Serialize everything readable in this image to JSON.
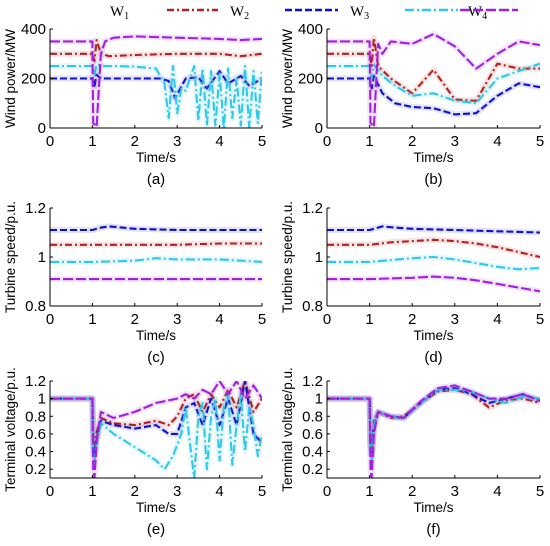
{
  "legend": {
    "entries": [
      {
        "name": "W1",
        "base": "W",
        "sub": "1",
        "color": "#b22222"
      },
      {
        "name": "W2",
        "base": "W",
        "sub": "2",
        "color": "#1010c8"
      },
      {
        "name": "W3",
        "base": "W",
        "sub": "3",
        "color": "#30c8e8"
      },
      {
        "name": "W4",
        "base": "W",
        "sub": "4",
        "color": "#a020e0"
      }
    ]
  },
  "chart_data": [
    {
      "id": "a",
      "type": "line",
      "caption": "(a)",
      "xlabel": "Time/s",
      "ylabel": "Wind power/MW",
      "xlim": [
        0,
        5
      ],
      "ylim": [
        0,
        400
      ],
      "xticks": [
        0,
        1,
        2,
        3,
        4,
        5
      ],
      "xtick_labels": [
        "0",
        "1",
        "2",
        "3",
        "4",
        "5"
      ],
      "yticks": [
        0,
        200,
        400
      ],
      "ytick_labels": [
        "0",
        "200",
        "400"
      ],
      "series": [
        {
          "name": "W1",
          "color": "#b22222",
          "dash": "7,3,2,3",
          "x": [
            0,
            1.0,
            1.05,
            1.1,
            1.2,
            1.4,
            2.0,
            3.0,
            4.0,
            4.5,
            5.0
          ],
          "y": [
            300,
            300,
            270,
            355,
            300,
            290,
            295,
            300,
            300,
            290,
            300
          ]
        },
        {
          "name": "W2",
          "color": "#1010c8",
          "dash": "7,3",
          "x": [
            0,
            1.0,
            1.05,
            1.1,
            1.2,
            1.5,
            2.0,
            2.6,
            2.8,
            2.95,
            3.2,
            3.5,
            3.7,
            4.0,
            4.2,
            4.5,
            4.7,
            5.0
          ],
          "y": [
            200,
            200,
            170,
            215,
            200,
            200,
            200,
            200,
            190,
            120,
            200,
            205,
            160,
            230,
            180,
            210,
            170,
            200
          ]
        },
        {
          "name": "W3",
          "color": "#30c8e8",
          "dash": "9,3,2,3",
          "x": [
            0,
            1.0,
            1.05,
            1.1,
            1.3,
            1.6,
            2.0,
            2.5,
            2.7,
            2.8,
            2.9,
            3.0,
            3.1,
            3.2,
            3.4,
            3.5,
            3.6,
            3.7,
            3.8,
            3.9,
            4.0,
            4.1,
            4.2,
            4.3,
            4.4,
            4.5,
            4.6,
            4.7,
            4.8,
            4.9,
            5.0
          ],
          "y": [
            250,
            250,
            215,
            255,
            250,
            250,
            248,
            240,
            180,
            40,
            250,
            60,
            160,
            150,
            250,
            30,
            240,
            10,
            230,
            10,
            220,
            0,
            240,
            40,
            200,
            10,
            250,
            0,
            230,
            20,
            230
          ]
        },
        {
          "name": "W4",
          "color": "#a020e0",
          "dash": "10,3",
          "x": [
            0,
            1.0,
            1.02,
            1.1,
            1.2,
            1.3,
            1.5,
            2.0,
            3.0,
            4.0,
            4.5,
            5.0
          ],
          "y": [
            350,
            350,
            20,
            5,
            300,
            350,
            365,
            370,
            365,
            360,
            355,
            360
          ]
        }
      ]
    },
    {
      "id": "b",
      "type": "line",
      "caption": "(b)",
      "xlabel": "Time/s",
      "ylabel": "Wind power/MW",
      "xlim": [
        0,
        5
      ],
      "ylim": [
        0,
        400
      ],
      "xticks": [
        0,
        1,
        2,
        3,
        4,
        5
      ],
      "xtick_labels": [
        "0",
        "1",
        "2",
        "3",
        "4",
        "5"
      ],
      "yticks": [
        0,
        200,
        400
      ],
      "ytick_labels": [
        "0",
        "200",
        "400"
      ],
      "series": [
        {
          "name": "W1",
          "color": "#b22222",
          "dash": "7,3,2,3",
          "x": [
            0,
            1.0,
            1.05,
            1.1,
            1.2,
            1.5,
            2.0,
            2.5,
            3.0,
            3.5,
            4.0,
            4.5,
            5.0
          ],
          "y": [
            300,
            300,
            250,
            365,
            250,
            200,
            140,
            235,
            115,
            110,
            260,
            240,
            240
          ]
        },
        {
          "name": "W2",
          "color": "#1010c8",
          "dash": "7,3",
          "x": [
            0,
            1.0,
            1.05,
            1.1,
            1.3,
            1.6,
            2.0,
            2.5,
            3.0,
            3.5,
            4.0,
            4.5,
            5.0
          ],
          "y": [
            200,
            200,
            160,
            210,
            140,
            100,
            85,
            80,
            55,
            60,
            130,
            180,
            165
          ]
        },
        {
          "name": "W3",
          "color": "#30c8e8",
          "dash": "9,3,2,3",
          "x": [
            0,
            1.0,
            1.05,
            1.1,
            1.3,
            1.6,
            2.0,
            2.5,
            3.0,
            3.5,
            4.0,
            4.5,
            5.0
          ],
          "y": [
            250,
            250,
            200,
            255,
            210,
            170,
            130,
            140,
            110,
            100,
            200,
            230,
            260
          ]
        },
        {
          "name": "W4",
          "color": "#a020e0",
          "dash": "10,3",
          "x": [
            0,
            1.0,
            1.02,
            1.1,
            1.2,
            1.3,
            1.5,
            2.0,
            2.5,
            3.0,
            3.5,
            4.0,
            4.5,
            5.0
          ],
          "y": [
            350,
            350,
            20,
            5,
            340,
            300,
            350,
            340,
            380,
            330,
            240,
            300,
            350,
            335
          ]
        }
      ]
    },
    {
      "id": "c",
      "type": "line",
      "caption": "(c)",
      "xlabel": "Time/s",
      "ylabel": "Turbine speed/p.u.",
      "xlim": [
        0,
        5
      ],
      "ylim": [
        0.8,
        1.2
      ],
      "xticks": [
        0,
        1,
        2,
        3,
        4,
        5
      ],
      "xtick_labels": [
        "0",
        "1",
        "2",
        "3",
        "4",
        "5"
      ],
      "yticks": [
        0.8,
        1.0,
        1.2
      ],
      "ytick_labels": [
        "0.8",
        "1",
        "1.2"
      ],
      "series": [
        {
          "name": "W1",
          "color": "#b22222",
          "dash": "7,3,2,3",
          "x": [
            0,
            1.0,
            2.0,
            3.0,
            4.0,
            5.0
          ],
          "y": [
            1.05,
            1.05,
            1.05,
            1.05,
            1.055,
            1.055
          ]
        },
        {
          "name": "W2",
          "color": "#1010c8",
          "dash": "7,3",
          "x": [
            0,
            1.0,
            1.2,
            1.4,
            1.7,
            2.0,
            3.0,
            4.0,
            5.0
          ],
          "y": [
            1.11,
            1.11,
            1.12,
            1.125,
            1.12,
            1.115,
            1.11,
            1.11,
            1.11
          ]
        },
        {
          "name": "W3",
          "color": "#30c8e8",
          "dash": "9,3,2,3",
          "x": [
            0,
            1.0,
            2.0,
            2.5,
            3.0,
            4.0,
            5.0
          ],
          "y": [
            0.98,
            0.98,
            0.985,
            0.995,
            0.99,
            0.99,
            0.98
          ]
        },
        {
          "name": "W4",
          "color": "#a020e0",
          "dash": "10,3",
          "x": [
            0,
            1.0,
            2.0,
            3.0,
            4.0,
            5.0
          ],
          "y": [
            0.91,
            0.91,
            0.91,
            0.91,
            0.91,
            0.91
          ]
        }
      ]
    },
    {
      "id": "d",
      "type": "line",
      "caption": "(d)",
      "xlabel": "Time/s",
      "ylabel": "Turbine speed/p.u.",
      "xlim": [
        0,
        5
      ],
      "ylim": [
        0.8,
        1.2
      ],
      "xticks": [
        0,
        1,
        2,
        3,
        4,
        5
      ],
      "xtick_labels": [
        "0",
        "1",
        "2",
        "3",
        "4",
        "5"
      ],
      "yticks": [
        0.8,
        1.0,
        1.2
      ],
      "ytick_labels": [
        "0.8",
        "1",
        "1.2"
      ],
      "series": [
        {
          "name": "W1",
          "color": "#b22222",
          "dash": "7,3,2,3",
          "x": [
            0,
            1.0,
            1.5,
            2.0,
            2.5,
            3.0,
            3.5,
            4.0,
            4.5,
            5.0
          ],
          "y": [
            1.05,
            1.05,
            1.06,
            1.065,
            1.07,
            1.065,
            1.055,
            1.04,
            1.02,
            1.0
          ]
        },
        {
          "name": "W2",
          "color": "#1010c8",
          "dash": "7,3",
          "x": [
            0,
            1.0,
            1.3,
            1.6,
            2.0,
            3.0,
            4.0,
            5.0
          ],
          "y": [
            1.11,
            1.11,
            1.125,
            1.12,
            1.115,
            1.11,
            1.105,
            1.1
          ]
        },
        {
          "name": "W3",
          "color": "#30c8e8",
          "dash": "9,3,2,3",
          "x": [
            0,
            1.0,
            2.0,
            2.5,
            3.0,
            3.5,
            4.0,
            4.5,
            5.0
          ],
          "y": [
            0.98,
            0.98,
            0.995,
            1.0,
            0.99,
            0.975,
            0.96,
            0.95,
            0.955
          ]
        },
        {
          "name": "W4",
          "color": "#a020e0",
          "dash": "10,3",
          "x": [
            0,
            1.0,
            2.0,
            2.5,
            3.0,
            3.5,
            4.0,
            4.5,
            5.0
          ],
          "y": [
            0.91,
            0.91,
            0.915,
            0.92,
            0.915,
            0.905,
            0.89,
            0.875,
            0.86
          ]
        }
      ]
    },
    {
      "id": "e",
      "type": "line",
      "caption": "(e)",
      "xlabel": "Time/s",
      "ylabel": "Terminal voltage/p.u.",
      "xlim": [
        0,
        5
      ],
      "ylim": [
        0.1,
        1.2
      ],
      "xticks": [
        0,
        1,
        2,
        3,
        4,
        5
      ],
      "xtick_labels": [
        "0",
        "1",
        "2",
        "3",
        "4",
        "5"
      ],
      "yticks": [
        0.2,
        0.4,
        0.6,
        0.8,
        1.0,
        1.2
      ],
      "ytick_labels": [
        "0.2",
        "0.4",
        "0.6",
        "0.8",
        "1",
        "1.2"
      ],
      "series": [
        {
          "name": "W1",
          "color": "#b22222",
          "dash": "7,3,2,3",
          "x": [
            0,
            1.0,
            1.02,
            1.05,
            1.1,
            1.2,
            1.5,
            2.0,
            2.5,
            2.8,
            3.0,
            3.2,
            3.4,
            3.6,
            3.8,
            4.0,
            4.2,
            4.4,
            4.6,
            4.8,
            5.0
          ],
          "y": [
            1.0,
            1.0,
            0.6,
            0.45,
            0.62,
            0.78,
            0.72,
            0.7,
            0.75,
            0.7,
            0.8,
            1.0,
            1.05,
            0.85,
            1.05,
            0.9,
            1.1,
            0.9,
            1.2,
            0.85,
            1.0
          ]
        },
        {
          "name": "W2",
          "color": "#1010c8",
          "dash": "7,3",
          "x": [
            0,
            1.0,
            1.02,
            1.05,
            1.1,
            1.2,
            1.5,
            2.0,
            2.5,
            2.8,
            3.0,
            3.2,
            3.4,
            3.6,
            3.8,
            4.0,
            4.2,
            4.4,
            4.6,
            4.8,
            5.0
          ],
          "y": [
            1.0,
            1.0,
            0.5,
            0.35,
            0.55,
            0.75,
            0.7,
            0.66,
            0.7,
            0.6,
            0.6,
            0.9,
            0.95,
            0.7,
            1.0,
            0.7,
            1.0,
            0.7,
            1.2,
            0.6,
            0.5
          ]
        },
        {
          "name": "W3",
          "color": "#30c8e8",
          "dash": "9,3,2,3",
          "x": [
            0,
            1.0,
            1.02,
            1.05,
            1.1,
            1.2,
            1.5,
            2.0,
            2.5,
            2.7,
            2.9,
            3.1,
            3.2,
            3.3,
            3.4,
            3.5,
            3.6,
            3.7,
            3.8,
            3.9,
            4.0,
            4.1,
            4.2,
            4.3,
            4.4,
            4.5,
            4.6,
            4.7,
            4.8,
            4.9,
            5.0
          ],
          "y": [
            1.0,
            1.0,
            0.4,
            0.3,
            0.5,
            0.72,
            0.6,
            0.45,
            0.3,
            0.2,
            0.35,
            0.6,
            0.9,
            0.5,
            0.1,
            0.8,
            0.95,
            0.2,
            0.8,
            1.0,
            0.3,
            0.9,
            1.05,
            0.25,
            0.7,
            1.05,
            0.4,
            0.9,
            0.7,
            0.35,
            0.6
          ]
        },
        {
          "name": "W4",
          "color": "#a020e0",
          "dash": "10,3",
          "x": [
            0,
            1.0,
            1.02,
            1.05,
            1.1,
            1.2,
            1.5,
            2.0,
            2.5,
            3.0,
            3.2,
            3.4,
            3.6,
            3.8,
            4.0,
            4.2,
            4.4,
            4.6,
            4.8,
            5.0
          ],
          "y": [
            1.0,
            1.0,
            0.2,
            0.1,
            0.5,
            0.85,
            0.78,
            0.85,
            0.95,
            1.0,
            1.05,
            1.0,
            1.1,
            1.05,
            1.2,
            1.05,
            1.2,
            1.0,
            1.15,
            1.0
          ]
        }
      ]
    },
    {
      "id": "f",
      "type": "line",
      "caption": "(f)",
      "xlabel": "Time/s",
      "ylabel": "Terminal voltage/p.u.",
      "xlim": [
        0,
        5
      ],
      "ylim": [
        0.1,
        1.2
      ],
      "xticks": [
        0,
        1,
        2,
        3,
        4,
        5
      ],
      "xtick_labels": [
        "0",
        "1",
        "2",
        "3",
        "4",
        "5"
      ],
      "yticks": [
        0.2,
        0.4,
        0.6,
        0.8,
        1.0,
        1.2
      ],
      "ytick_labels": [
        "0.2",
        "0.4",
        "0.6",
        "0.8",
        "1",
        "1.2"
      ],
      "series": [
        {
          "name": "W1",
          "color": "#b22222",
          "dash": "7,3,2,3",
          "x": [
            0,
            1.0,
            1.02,
            1.05,
            1.1,
            1.2,
            1.5,
            1.8,
            2.2,
            2.6,
            3.0,
            3.4,
            3.8,
            4.2,
            4.6,
            5.0
          ],
          "y": [
            1.0,
            1.0,
            0.5,
            0.4,
            0.75,
            0.85,
            0.78,
            0.8,
            0.95,
            1.08,
            1.1,
            1.05,
            0.9,
            0.98,
            1.0,
            0.95
          ]
        },
        {
          "name": "W2",
          "color": "#1010c8",
          "dash": "7,3",
          "x": [
            0,
            1.0,
            1.02,
            1.05,
            1.1,
            1.2,
            1.5,
            1.8,
            2.2,
            2.6,
            3.0,
            3.4,
            3.8,
            4.2,
            4.6,
            5.0
          ],
          "y": [
            1.0,
            1.0,
            0.45,
            0.35,
            0.7,
            0.85,
            0.8,
            0.78,
            0.95,
            1.1,
            1.12,
            1.05,
            0.95,
            1.0,
            1.05,
            0.98
          ]
        },
        {
          "name": "W3",
          "color": "#30c8e8",
          "dash": "9,3,2,3",
          "x": [
            0,
            1.0,
            1.02,
            1.05,
            1.1,
            1.2,
            1.5,
            1.8,
            2.2,
            2.6,
            3.0,
            3.4,
            3.8,
            4.2,
            4.6,
            5.0
          ],
          "y": [
            1.0,
            1.0,
            0.4,
            0.3,
            0.7,
            0.85,
            0.8,
            0.77,
            0.95,
            1.1,
            1.1,
            1.08,
            1.0,
            0.95,
            1.02,
            1.0
          ]
        },
        {
          "name": "W4",
          "color": "#a020e0",
          "dash": "10,3",
          "x": [
            0,
            1.0,
            1.02,
            1.05,
            1.1,
            1.2,
            1.5,
            1.8,
            2.2,
            2.6,
            3.0,
            3.4,
            3.8,
            4.2,
            4.6,
            5.0
          ],
          "y": [
            1.0,
            1.0,
            0.2,
            0.1,
            0.6,
            0.85,
            0.8,
            0.78,
            0.97,
            1.12,
            1.15,
            1.08,
            1.0,
            1.0,
            1.05,
            0.97
          ]
        }
      ]
    }
  ]
}
